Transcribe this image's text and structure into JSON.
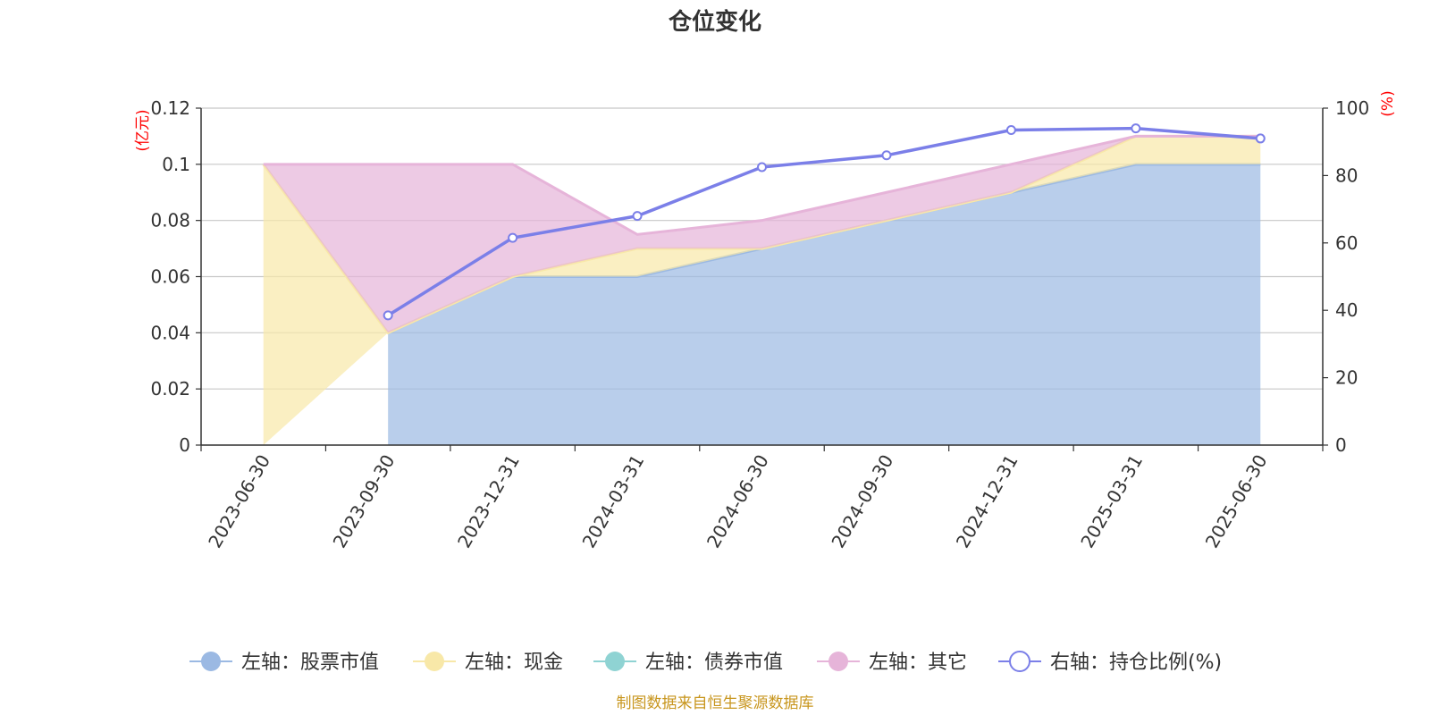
{
  "chart_data": {
    "type": "area",
    "title": "仓位变化",
    "categories": [
      "2023-06-30",
      "2023-09-30",
      "2023-12-31",
      "2024-03-31",
      "2024-06-30",
      "2024-09-30",
      "2024-12-31",
      "2025-03-31",
      "2025-06-30"
    ],
    "left_axis": {
      "unit": "(亿元)",
      "ylim": [
        0,
        0.12
      ],
      "ticks": [
        "0",
        "0.02",
        "0.04",
        "0.06",
        "0.08",
        "0.1",
        "0.12"
      ]
    },
    "right_axis": {
      "unit": "(%)",
      "ylim": [
        0,
        100
      ],
      "ticks": [
        "0",
        "20",
        "40",
        "60",
        "80",
        "100"
      ]
    },
    "series": [
      {
        "name": "左轴：股票市值",
        "axis": "left",
        "type": "area",
        "color": "#9bb9e3",
        "values": [
          null,
          0.04,
          0.06,
          0.06,
          0.07,
          0.08,
          0.09,
          0.1,
          0.1
        ]
      },
      {
        "name": "左轴：现金",
        "axis": "left",
        "type": "area",
        "color": "#f8e8a8",
        "values": [
          0.1,
          0.0,
          0.0,
          0.01,
          0.0,
          0.0,
          0.0,
          0.01,
          0.01
        ]
      },
      {
        "name": "左轴：债券市值",
        "axis": "left",
        "type": "area",
        "color": "#8fd3d3",
        "values": [
          null,
          null,
          null,
          null,
          null,
          null,
          null,
          null,
          null
        ]
      },
      {
        "name": "左轴：其它",
        "axis": "left",
        "type": "area",
        "color": "#e6b4d9",
        "values": [
          0.0,
          0.06,
          0.04,
          0.005,
          0.01,
          0.01,
          0.01,
          0.0,
          0.0
        ]
      },
      {
        "name": "右轴：持仓比例(%)",
        "axis": "right",
        "type": "line",
        "color": "#7b7fe8",
        "values": [
          null,
          38.5,
          61.5,
          68.0,
          82.5,
          86.0,
          93.5,
          94.0,
          91.0
        ]
      }
    ],
    "grid": true,
    "legend_position": "bottom",
    "source": "制图数据来自恒生聚源数据库"
  }
}
